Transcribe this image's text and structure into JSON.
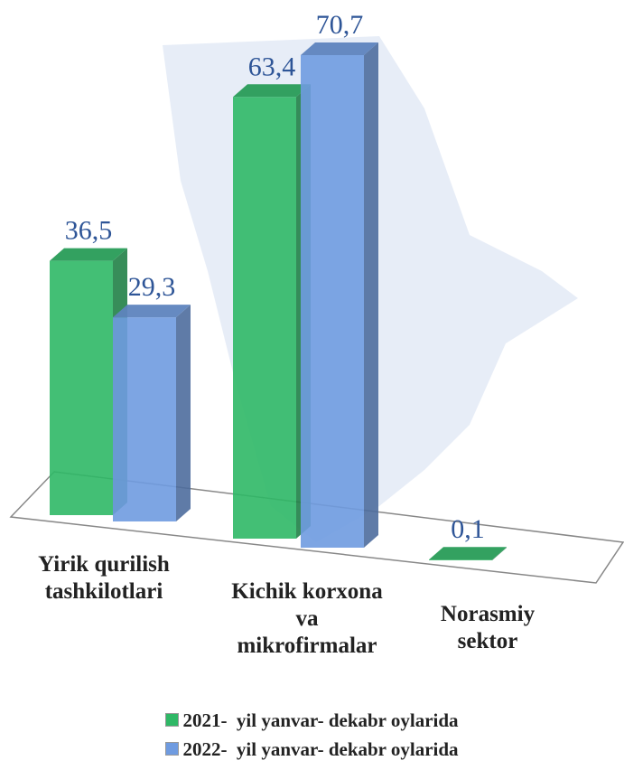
{
  "chart_data": {
    "type": "bar3d",
    "categories": [
      "Yirik qurilish tashkilotlari",
      "Kichik korxona va mikrofirmalar",
      "Norasmiy sektor"
    ],
    "series": [
      {
        "name": "2021-  yil yanvar- dekabr oylarida",
        "color": "#2fb866",
        "values": [
          36.5,
          63.4,
          0.1
        ],
        "value_labels": [
          "36,5",
          "63,4",
          "0,1"
        ]
      },
      {
        "name": "2022-  yil yanvar- dekabr oylarida",
        "color": "#6f9be0",
        "values": [
          29.3,
          70.7,
          null
        ],
        "value_labels": [
          "29,3",
          "70,7",
          null
        ]
      }
    ]
  }
}
